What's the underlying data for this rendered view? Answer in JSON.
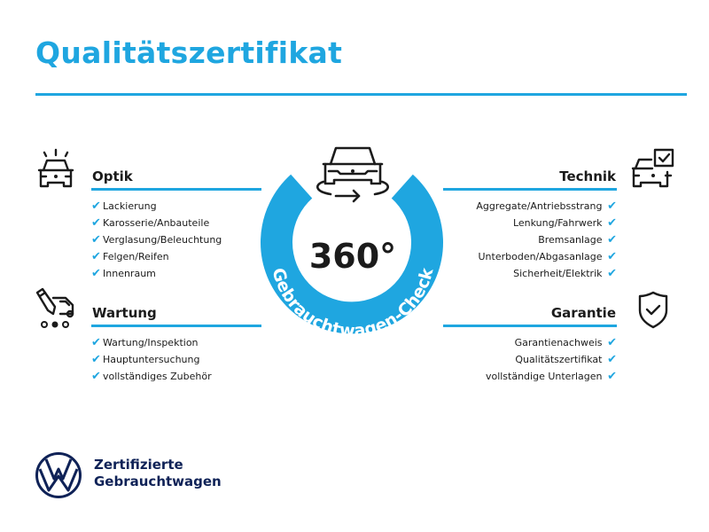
{
  "title": "Qualitätszertifikat",
  "colors": {
    "accent": "#1fa6e0",
    "text": "#1b1b1b",
    "brand": "#0f2257"
  },
  "center": {
    "big_text": "360°",
    "arc_text": "Gebrauchtwagen-Check",
    "icon": "car-rotate-icon"
  },
  "sections": {
    "optik": {
      "title": "Optik",
      "icon": "car-lights-icon",
      "items": [
        "Lackierung",
        "Karosserie/Anbauteile",
        "Verglasung/Beleuchtung",
        "Felgen/Reifen",
        "Innenraum"
      ]
    },
    "wartung": {
      "title": "Wartung",
      "icon": "service-truck-icon",
      "items": [
        "Wartung/Inspektion",
        "Hauptuntersuchung",
        "vollständiges Zubehör"
      ]
    },
    "technik": {
      "title": "Technik",
      "icon": "car-checkbox-icon",
      "items": [
        "Aggregate/Antriebsstrang",
        "Lenkung/Fahrwerk",
        "Bremsanlage",
        "Unterboden/Abgasanlage",
        "Sicherheit/Elektrik"
      ]
    },
    "garantie": {
      "title": "Garantie",
      "icon": "shield-check-icon",
      "items": [
        "Garantienachweis",
        "Qualitätszertifikat",
        "vollständige Unterlagen"
      ]
    }
  },
  "check_glyph": "✔",
  "footer": {
    "line1": "Zertifizierte",
    "line2": "Gebrauchtwagen",
    "logo": "vw-logo"
  }
}
